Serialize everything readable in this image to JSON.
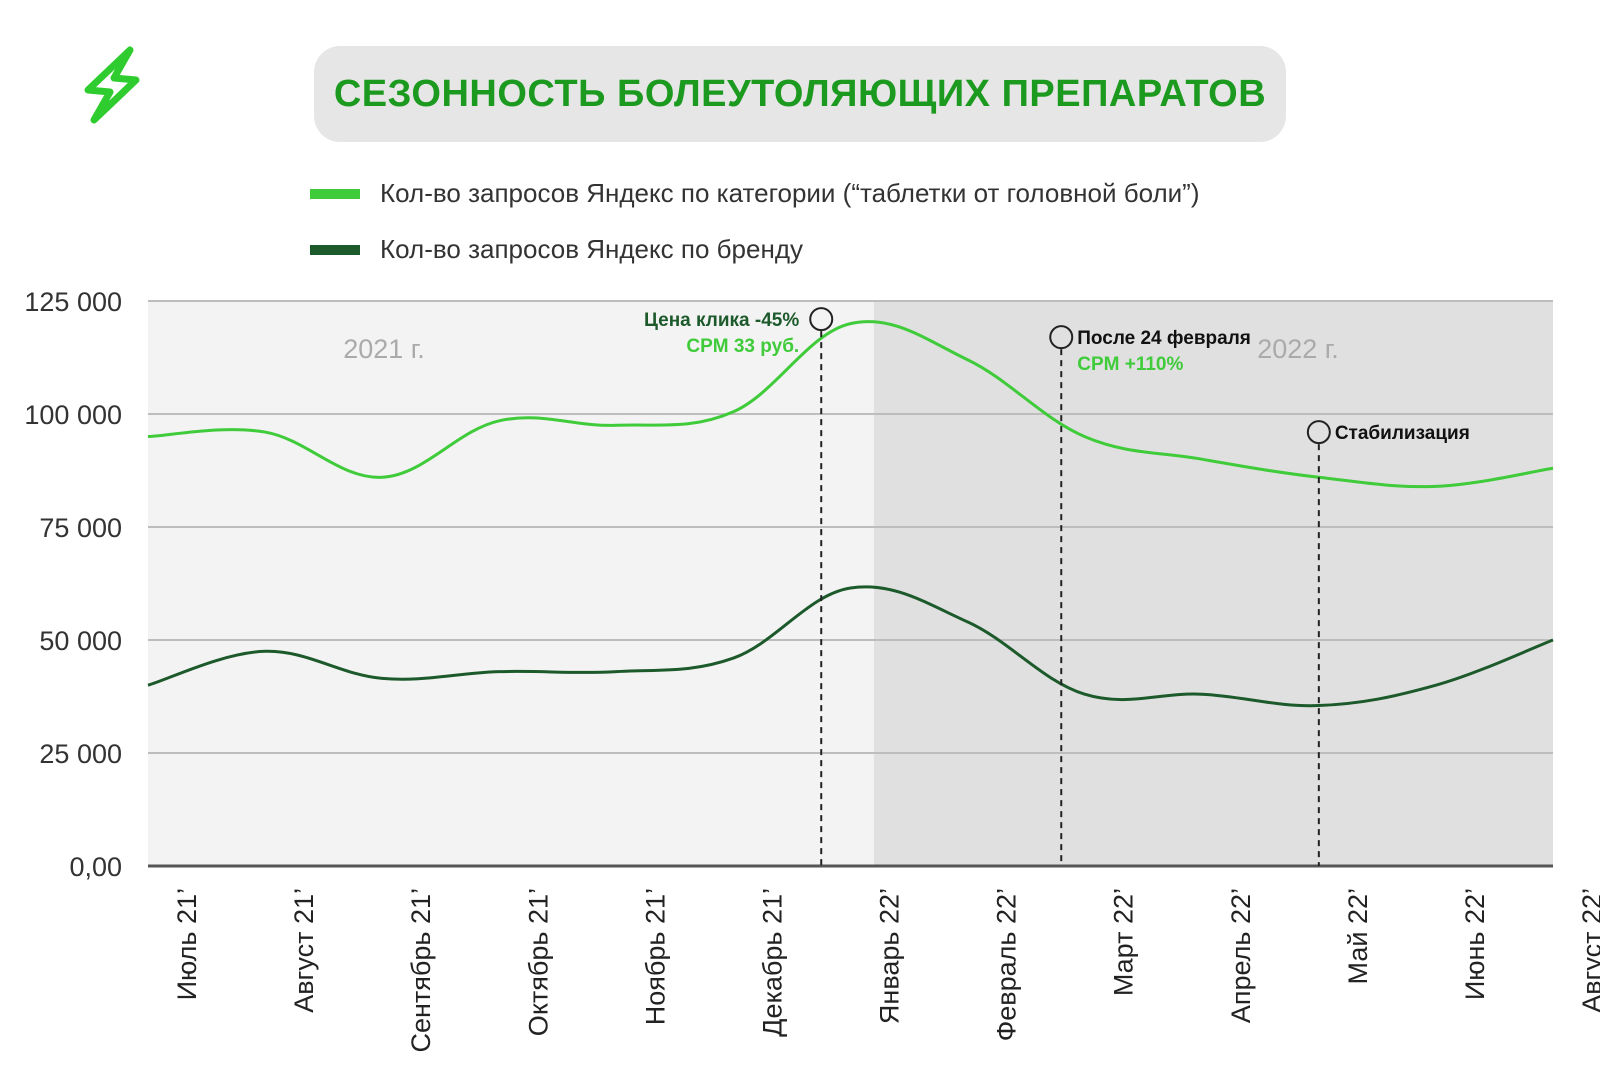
{
  "title": "СЕЗОННОСТЬ БОЛЕУТОЛЯЮЩИХ ПРЕПАРАТОВ",
  "colors": {
    "title": "#1c9a1f",
    "category": "#3fcb3a",
    "brand": "#1d5a2b",
    "panel_2021": "#f3f3f3",
    "panel_2022": "#e0e0e0",
    "grid": "#bdbdbd",
    "logo": "#2fcc2f"
  },
  "legend": [
    {
      "label": "Кол-во запросов Яндекс по категории (“таблетки от головной боли”)",
      "color": "#3fcb3a"
    },
    {
      "label": "Кол-во запросов Яндекс по бренду",
      "color": "#1d5a2b"
    }
  ],
  "chart_data": {
    "type": "line",
    "categories": [
      "Июль 21’",
      "Август 21’",
      "Сентябрь 21’",
      "Октябрь 21’",
      "Ноябрь 21’",
      "Декабрь 21’",
      "Январь 22’",
      "Февраль 22’",
      "Март 22’",
      "Апрель 22’",
      "Май 22’",
      "Июнь 22’",
      "Август 22’"
    ],
    "series": [
      {
        "values": [
          95000,
          96000,
          86000,
          98500,
          97500,
          100500,
          120000,
          112000,
          95000,
          90000,
          86000,
          84000,
          88000
        ],
        "color": "#3fcb3a"
      },
      {
        "values": [
          40000,
          47500,
          41500,
          43000,
          43000,
          46000,
          61500,
          54000,
          38000,
          38000,
          35500,
          40000,
          50000
        ],
        "color": "#1d5a2b"
      }
    ],
    "ylim": [
      0,
      125000
    ],
    "yticks": [
      {
        "value": 0,
        "label": "0,00"
      },
      {
        "value": 25000,
        "label": "25 000"
      },
      {
        "value": 50000,
        "label": "50 000"
      },
      {
        "value": 75000,
        "label": "75 000"
      },
      {
        "value": 100000,
        "label": "100 000"
      },
      {
        "value": 125000,
        "label": "125 000"
      }
    ],
    "grid": true,
    "periods": [
      {
        "label": "2021 г.",
        "start": 0,
        "end": 6.2
      },
      {
        "label": "2022 г.",
        "start": 6.2,
        "end": 12
      }
    ],
    "annotations": [
      {
        "x": 5.75,
        "y": 121000,
        "lines": [
          {
            "text": "Цена клика -45%",
            "color": "#1d5a2b"
          },
          {
            "text": "CPM 33 руб.",
            "color": "#3fcb3a"
          }
        ],
        "side": "left"
      },
      {
        "x": 7.8,
        "y": 117000,
        "lines": [
          {
            "text": "После 24 февраля",
            "color": "#111111"
          },
          {
            "text": "CPM +110%",
            "color": "#3fcb3a"
          }
        ],
        "side": "right"
      },
      {
        "x": 10.0,
        "y": 96000,
        "lines": [
          {
            "text": "Стабилизация",
            "color": "#111111"
          }
        ],
        "side": "right"
      }
    ]
  }
}
